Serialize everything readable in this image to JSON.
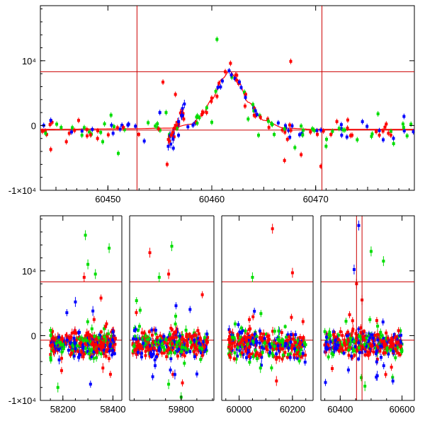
{
  "chart_data": [
    {
      "type": "scatter",
      "panel": "top",
      "title": "",
      "xlabel": "",
      "ylabel": "",
      "xlim": [
        60443.5,
        60479.5
      ],
      "ylim": [
        -10000,
        18500
      ],
      "x_ticks": [
        60450,
        60460,
        60470
      ],
      "x_tick_labels": [
        "60450",
        "60460",
        "60470"
      ],
      "y_ticks": [
        -10000,
        0,
        10000
      ],
      "y_tick_labels": [
        "-1×10⁴",
        "0",
        "10⁴"
      ],
      "hlines": [
        8300,
        -700
      ],
      "vlines": [
        60452.8,
        60470.6
      ],
      "colors": {
        "filter_1": "#0000ff",
        "filter_2": "#00dd00",
        "filter_3": "#ff0000",
        "model": "#ff0000",
        "guides": "#cc0000"
      },
      "model_curve": {
        "x": [
          60443.5,
          60452,
          60456,
          60458,
          60459,
          60460,
          60461,
          60461.7,
          60462.5,
          60463.5,
          60465,
          60467,
          60470,
          60479.5
        ],
        "y": [
          -600,
          -500,
          -400,
          200,
          1500,
          4000,
          7200,
          8400,
          7000,
          3600,
          800,
          -400,
          -600,
          -600
        ]
      },
      "series": [
        {
          "color_key": "filter_1",
          "x": [
            60444.5,
            60446.5,
            60448.5,
            60450.5,
            60452.0,
            60453.5,
            60455.0,
            60456.3,
            60456.8,
            60457.2,
            60457.7,
            60458.4,
            60470.5,
            60472.5,
            60474.5,
            60476.5,
            60478.5
          ],
          "y": [
            800,
            -1000,
            -600,
            -1200,
            200,
            -2400,
            2000,
            -3500,
            -1500,
            1500,
            -200,
            400,
            -700,
            -1500,
            600,
            -2200,
            1400
          ]
        },
        {
          "color_key": "filter_2",
          "x": [
            60444.0,
            60445.5,
            60447.5,
            60449.5,
            60450.3,
            60451.0,
            60455.6,
            60458.8,
            60460.0,
            60460.5,
            60463.5,
            60464.5,
            60467.0,
            60468.0,
            60471.0,
            60472.8,
            60474.0,
            60476.0,
            60477.5,
            60478.8
          ],
          "y": [
            -1200,
            -300,
            -1500,
            -2500,
            1600,
            -4300,
            2000,
            1200,
            500,
            13300,
            1000,
            -1500,
            -500,
            -3400,
            -3200,
            -700,
            -2200,
            1800,
            -2800,
            -1600
          ]
        },
        {
          "color_key": "filter_3",
          "x": [
            60443.7,
            60444.5,
            60446.0,
            60448.0,
            60449.0,
            60451.5,
            60455.3,
            60455.7,
            60456.1,
            60456.5,
            60457.3,
            60458.5,
            60459.5,
            60460.5,
            60461.3,
            60461.8,
            60462.3,
            60463.2,
            60464.2,
            60465.5,
            60467.0,
            60467.6,
            60468.6,
            60469.5,
            60470.5,
            60473.5,
            60477.0
          ],
          "y": [
            -900,
            -3700,
            -2500,
            -1600,
            -2000,
            -300,
            6700,
            -6000,
            -1500,
            4800,
            1000,
            500,
            2000,
            4500,
            8300,
            9600,
            7800,
            3000,
            1500,
            -300,
            -5400,
            9900,
            -4500,
            -1000,
            -6300,
            -1500,
            -1200
          ]
        }
      ]
    },
    {
      "type": "scatter",
      "panel": "bottom",
      "title": "",
      "xlabel": "",
      "ylabel": "",
      "xlim": [
        null,
        null
      ],
      "ylim": [
        -10000,
        18500
      ],
      "segments": [
        {
          "xlim": [
            58110,
            58430
          ],
          "x_ticks": [
            58200,
            58400
          ],
          "x_tick_labels": [
            "58200",
            "58400"
          ],
          "data_x": [
            58150,
            58410
          ]
        },
        {
          "xlim": [
            59640,
            59900
          ],
          "x_ticks": [
            59800
          ],
          "x_tick_labels": [
            "59800"
          ],
          "data_x": [
            59645,
            59885
          ]
        },
        {
          "xlim": [
            59940,
            60272
          ],
          "x_ticks": [
            60000,
            60200
          ],
          "x_tick_labels": [
            "60000",
            "60200"
          ],
          "data_x": [
            59960,
            60252
          ]
        },
        {
          "xlim": [
            60342,
            60640
          ],
          "x_ticks": [
            60400,
            60600
          ],
          "x_tick_labels": [
            "60400",
            "60600"
          ],
          "data_x": [
            60350,
            60600
          ]
        }
      ],
      "y_ticks": [
        -10000,
        0,
        10000
      ],
      "y_tick_labels": [
        "-1×10⁴",
        "0",
        "10⁴"
      ],
      "hlines": [
        8300,
        -700
      ],
      "vlines": [
        60452.8,
        60470.6
      ],
      "colors": {
        "filter_1": "#0000ff",
        "filter_2": "#00dd00",
        "filter_3": "#ff0000",
        "guides": "#cc0000"
      },
      "band": {
        "center": -1300,
        "halfwidth": 1800
      },
      "outliers": {
        "filter_2": {
          "x": [
            58290,
            58300,
            58330,
            58385,
            58180,
            59770,
            59800,
            59730,
            59760,
            60050,
            60080,
            60500,
            60540,
            60480
          ],
          "y": [
            15500,
            11000,
            9500,
            13500,
            -8000,
            13800,
            -9500,
            9000,
            -7500,
            9000,
            -5000,
            13000,
            11500,
            -7800
          ]
        },
        "filter_1": {
          "x": [
            58250,
            58320,
            59780,
            60460,
            60445,
            60520
          ],
          "y": [
            5200,
            3800,
            -6000,
            17000,
            10200,
            -6200
          ]
        },
        "filter_3": {
          "x": [
            58285,
            58360,
            59700,
            59760,
            60125,
            60200,
            60140,
            60452.8,
            60470.6
          ],
          "y": [
            9000,
            -5000,
            12800,
            9500,
            16500,
            9700,
            -7000,
            8000,
            5500
          ]
        }
      }
    }
  ]
}
